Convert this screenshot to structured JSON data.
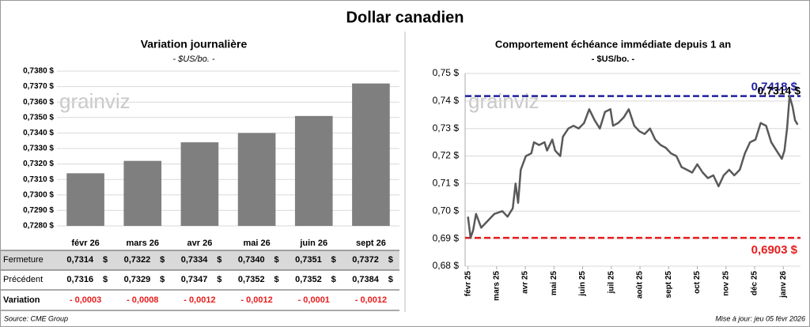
{
  "title": "Dollar canadien",
  "watermark": "grainviz",
  "chart_data": [
    {
      "type": "bar",
      "title": "Variation journalière",
      "subtitle": "- $US/bo. -",
      "categories": [
        "févr 26",
        "mars 26",
        "avr 26",
        "mai 26",
        "juin 26",
        "sept 26"
      ],
      "values": [
        0.7314,
        0.7322,
        0.7334,
        0.734,
        0.7351,
        0.7372
      ],
      "color": "#7f7f7f",
      "ylim": [
        0.728,
        0.738
      ],
      "yticks": [
        {
          "value": 0.728,
          "label": "0,7280 $"
        },
        {
          "value": 0.729,
          "label": "0,7290 $"
        },
        {
          "value": 0.73,
          "label": "0,7300 $"
        },
        {
          "value": 0.731,
          "label": "0,7310 $"
        },
        {
          "value": 0.732,
          "label": "0,7320 $"
        },
        {
          "value": 0.733,
          "label": "0,7330 $"
        },
        {
          "value": 0.734,
          "label": "0,7340 $"
        },
        {
          "value": 0.735,
          "label": "0,7350 $"
        },
        {
          "value": 0.736,
          "label": "0,7360 $"
        },
        {
          "value": 0.737,
          "label": "0,7370 $"
        },
        {
          "value": 0.738,
          "label": "0,7380 $"
        }
      ],
      "grid": true
    },
    {
      "type": "line",
      "title": "Comportement échéance immédiate depuis 1 an",
      "subtitle": "- $US/bo. -",
      "x": [
        0,
        0.09,
        0.18,
        0.28,
        0.46,
        0.74,
        0.92,
        1.2,
        1.38,
        1.56,
        1.66,
        1.75,
        1.84,
        2.02,
        2.21,
        2.3,
        2.48,
        2.67,
        2.76,
        2.94,
        3.04,
        3.22,
        3.31,
        3.5,
        3.68,
        3.86,
        4.05,
        4.23,
        4.42,
        4.6,
        4.78,
        4.97,
        5.06,
        5.24,
        5.43,
        5.61,
        5.8,
        5.98,
        6.16,
        6.35,
        6.53,
        6.72,
        6.9,
        7.08,
        7.27,
        7.45,
        7.64,
        7.82,
        8.0,
        8.19,
        8.37,
        8.56,
        8.74,
        8.92,
        9.11,
        9.29,
        9.48,
        9.66,
        9.84,
        10.03,
        10.21,
        10.4,
        10.58,
        10.76,
        10.95,
        11.04,
        11.13,
        11.22,
        11.32,
        11.41,
        11.5
      ],
      "series": [
        {
          "name": "Dollar canadien",
          "color": "#595959",
          "values": [
            0.698,
            0.6903,
            0.693,
            0.699,
            0.694,
            0.697,
            0.699,
            0.7,
            0.698,
            0.701,
            0.71,
            0.703,
            0.715,
            0.72,
            0.721,
            0.725,
            0.724,
            0.725,
            0.722,
            0.726,
            0.722,
            0.72,
            0.727,
            0.73,
            0.731,
            0.73,
            0.732,
            0.737,
            0.733,
            0.73,
            0.736,
            0.737,
            0.731,
            0.732,
            0.734,
            0.737,
            0.731,
            0.729,
            0.728,
            0.73,
            0.726,
            0.724,
            0.723,
            0.721,
            0.72,
            0.716,
            0.715,
            0.714,
            0.717,
            0.714,
            0.712,
            0.713,
            0.709,
            0.713,
            0.715,
            0.713,
            0.715,
            0.721,
            0.725,
            0.726,
            0.732,
            0.731,
            0.725,
            0.722,
            0.719,
            0.722,
            0.73,
            0.7418,
            0.738,
            0.733,
            0.7314
          ]
        }
      ],
      "xlim": [
        -0.1,
        11.6
      ],
      "xticks": [
        {
          "value": 0,
          "label": "févr 25"
        },
        {
          "value": 1,
          "label": "mars 25"
        },
        {
          "value": 2,
          "label": "avr 25"
        },
        {
          "value": 3,
          "label": "mai 25"
        },
        {
          "value": 4,
          "label": "juin 25"
        },
        {
          "value": 5,
          "label": "juil 25"
        },
        {
          "value": 6,
          "label": "août 25"
        },
        {
          "value": 7,
          "label": "sept 25"
        },
        {
          "value": 8,
          "label": "oct 25"
        },
        {
          "value": 9,
          "label": "nov 25"
        },
        {
          "value": 10,
          "label": "déc 25"
        },
        {
          "value": 11,
          "label": "janv 26"
        }
      ],
      "ylim": [
        0.68,
        0.75
      ],
      "yticks": [
        {
          "value": 0.68,
          "label": "0,68 $"
        },
        {
          "value": 0.69,
          "label": "0,69 $"
        },
        {
          "value": 0.7,
          "label": "0,70 $"
        },
        {
          "value": 0.71,
          "label": "0,71 $"
        },
        {
          "value": 0.72,
          "label": "0,72 $"
        },
        {
          "value": 0.73,
          "label": "0,73 $"
        },
        {
          "value": 0.74,
          "label": "0,74 $"
        },
        {
          "value": 0.75,
          "label": "0,75 $"
        }
      ],
      "grid": true,
      "hlines": [
        {
          "value": 0.7418,
          "label": "0,7418 $",
          "color": "#1f1fa0"
        },
        {
          "value": 0.6903,
          "label": "0,6903 $",
          "color": "#e81c1c"
        }
      ],
      "last_label": {
        "value": 0.7314,
        "label": "0,7314 $"
      }
    }
  ],
  "table": {
    "rows": [
      {
        "label": "Fermeture",
        "unit": "$",
        "cells": [
          "0,7314",
          "0,7322",
          "0,7334",
          "0,7340",
          "0,7351",
          "0,7372"
        ]
      },
      {
        "label": "Précédent",
        "unit": "$",
        "cells": [
          "0,7316",
          "0,7329",
          "0,7347",
          "0,7352",
          "0,7352",
          "0,7384"
        ]
      },
      {
        "label": "Variation",
        "cells": [
          "- 0,0003",
          "- 0,0008",
          "- 0,0012",
          "- 0,0012",
          "- 0,0001",
          "- 0,0012"
        ]
      }
    ]
  },
  "footer": {
    "source": "Source: CME Group",
    "updated": "Mise à jour: jeu 05 févr 2026"
  }
}
